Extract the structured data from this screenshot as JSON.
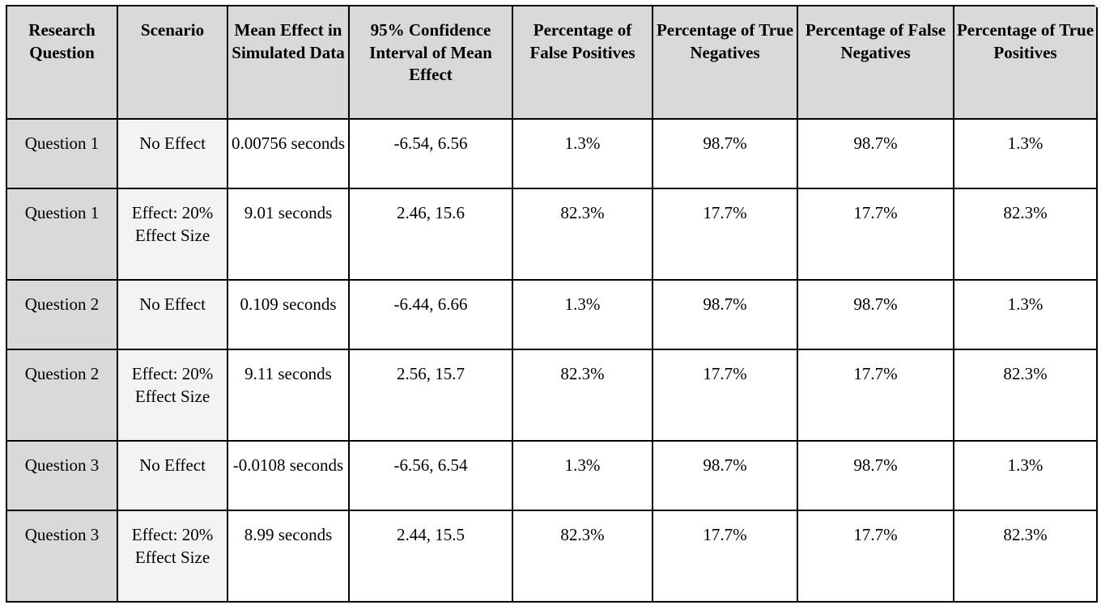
{
  "table": {
    "headers": [
      "Research Question",
      "Scenario",
      "Mean Effect in Simulated Data",
      "95% Confidence Interval of Mean Effect",
      "Percentage of False Positives",
      "Percentage of True Negatives",
      "Percentage of False Negatives",
      "Percentage of True Positives"
    ],
    "rows": [
      [
        "Question 1",
        "No Effect",
        "0.00756 seconds",
        "-6.54, 6.56",
        "1.3%",
        "98.7%",
        "98.7%",
        "1.3%"
      ],
      [
        "Question 1",
        "Effect: 20% Effect Size",
        "9.01 seconds",
        "2.46, 15.6",
        "82.3%",
        "17.7%",
        "17.7%",
        "82.3%"
      ],
      [
        "Question 2",
        "No Effect",
        "0.109 seconds",
        "-6.44, 6.66",
        "1.3%",
        "98.7%",
        "98.7%",
        "1.3%"
      ],
      [
        "Question 2",
        "Effect: 20% Effect Size",
        "9.11 seconds",
        "2.56, 15.7",
        "82.3%",
        "17.7%",
        "17.7%",
        "82.3%"
      ],
      [
        "Question 3",
        "No Effect",
        "-0.0108 seconds",
        "-6.56, 6.54",
        "1.3%",
        "98.7%",
        "98.7%",
        "1.3%"
      ],
      [
        "Question 3",
        "Effect: 20% Effect Size",
        "8.99 seconds",
        "2.44, 15.5",
        "82.3%",
        "17.7%",
        "17.7%",
        "82.3%"
      ]
    ]
  },
  "colors": {
    "header_background": "#d9d9d9",
    "first_column_background": "#d9d9d9",
    "second_column_background": "#f3f3f3",
    "border": "#000000"
  }
}
